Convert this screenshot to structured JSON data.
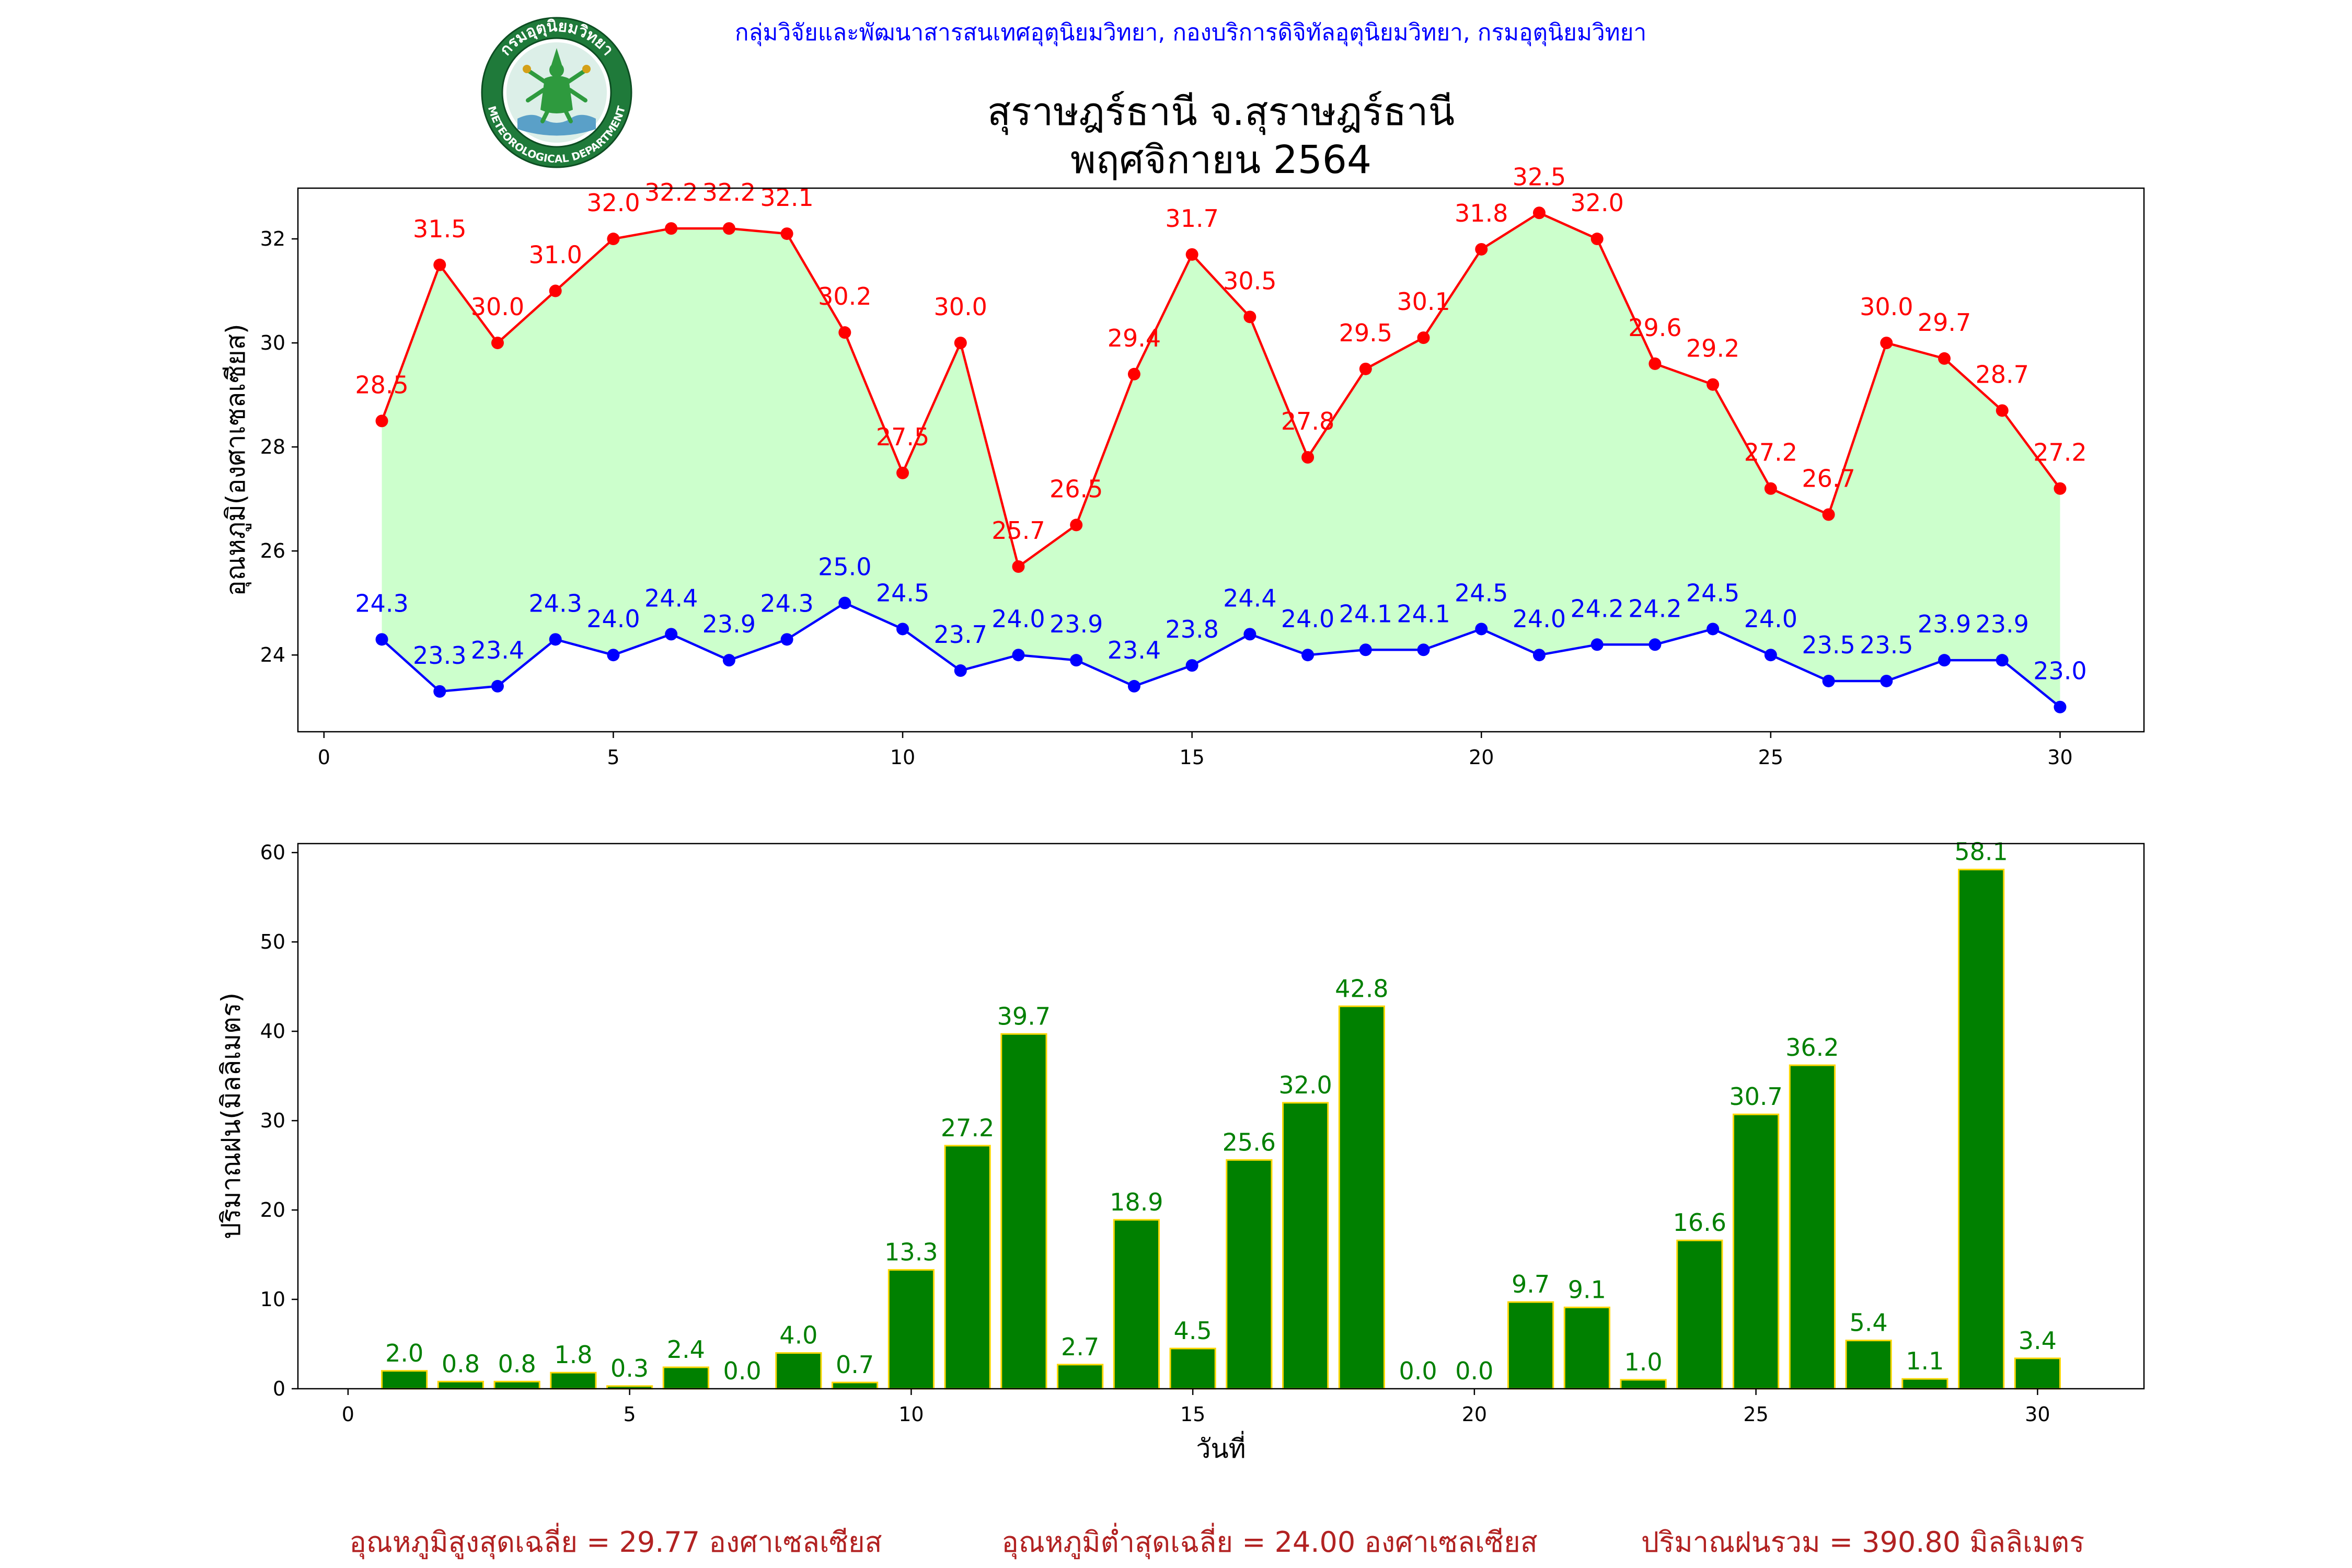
{
  "header": {
    "org_line": "กลุ่มวิจัยและพัฒนาสารสนเทศอุตุนิยมวิทยา, กองบริการดิจิทัลอุตุนิยมวิทยา, กรมอุตุนิยมวิทยา",
    "color": "#0000ff"
  },
  "logo": {
    "icon": "meteorological-department-seal-icon",
    "text_th": "กรมอุตุนิยมวิทยา",
    "text_en": "METEOROLOGICAL DEPARTMENT"
  },
  "title": {
    "station": "สุราษฎร์ธานี จ.สุราษฎร์ธานี",
    "period": "พฤศจิกายน 2564"
  },
  "chart_data": [
    {
      "type": "line",
      "title": "",
      "xlabel": "",
      "ylabel": "อุณหภูมิ(องศาเซลเซียส)",
      "x": [
        1,
        2,
        3,
        4,
        5,
        6,
        7,
        8,
        9,
        10,
        11,
        12,
        13,
        14,
        15,
        16,
        17,
        18,
        19,
        20,
        21,
        22,
        23,
        24,
        25,
        26,
        27,
        28,
        29,
        30
      ],
      "series": [
        {
          "color": "#ff0000",
          "marker": "circle",
          "values": [
            28.5,
            31.5,
            30.0,
            31.0,
            32.0,
            32.2,
            32.2,
            32.1,
            30.2,
            27.5,
            30.0,
            25.7,
            26.5,
            29.4,
            31.7,
            30.5,
            27.8,
            29.5,
            30.1,
            31.8,
            32.5,
            32.0,
            29.6,
            29.2,
            27.2,
            26.7,
            30.0,
            29.7,
            28.7,
            27.2
          ]
        },
        {
          "color": "#0000ff",
          "marker": "circle",
          "values": [
            24.3,
            23.3,
            23.4,
            24.3,
            24.0,
            24.4,
            23.9,
            24.3,
            25.0,
            24.5,
            23.7,
            24.0,
            23.9,
            23.4,
            23.8,
            24.4,
            24.0,
            24.1,
            24.1,
            24.5,
            24.0,
            24.2,
            24.2,
            24.5,
            24.0,
            23.5,
            23.5,
            23.9,
            23.9,
            23.0
          ]
        }
      ],
      "fill_between": {
        "color": "#ccffcc"
      },
      "data_labels": true,
      "xlim": [
        -0.45,
        31.45
      ],
      "ylim": [
        22.525,
        32.975
      ],
      "xticks": [
        0,
        5,
        10,
        15,
        20,
        25,
        30
      ],
      "yticks": [
        24,
        26,
        28,
        30,
        32
      ],
      "grid": false
    },
    {
      "type": "bar",
      "title": "",
      "xlabel": "วันที่",
      "ylabel": "ปริมาณฝน(มิลลิเมตร)",
      "x": [
        1,
        2,
        3,
        4,
        5,
        6,
        7,
        8,
        9,
        10,
        11,
        12,
        13,
        14,
        15,
        16,
        17,
        18,
        19,
        20,
        21,
        22,
        23,
        24,
        25,
        26,
        27,
        28,
        29,
        30
      ],
      "values": [
        2.0,
        0.8,
        0.8,
        1.8,
        0.3,
        2.4,
        0.0,
        4.0,
        0.7,
        13.3,
        27.2,
        39.7,
        2.7,
        18.9,
        4.5,
        25.6,
        32.0,
        42.8,
        0.0,
        0.0,
        9.7,
        9.1,
        1.0,
        16.6,
        30.7,
        36.2,
        5.4,
        1.1,
        58.1,
        3.4
      ],
      "bar_color": "#008000",
      "edge_color": "#ffd700",
      "label_color": "#008000",
      "data_labels": true,
      "xlim": [
        -0.89,
        31.89
      ],
      "ylim": [
        0,
        61.005
      ],
      "xticks": [
        0,
        5,
        10,
        15,
        20,
        25,
        30
      ],
      "yticks": [
        0,
        10,
        20,
        30,
        40,
        50,
        60
      ],
      "grid": false
    }
  ],
  "footer": {
    "avg_max": "อุณหภูมิสูงสุดเฉลี่ย = 29.77 องศาเซลเซียส",
    "avg_min": "อุณหภูมิต่ำสุดเฉลี่ย = 24.00 องศาเซลเซียส",
    "total_rain": "ปริมาณฝนรวม = 390.80 มิลลิเมตร",
    "color": "#b22222"
  }
}
